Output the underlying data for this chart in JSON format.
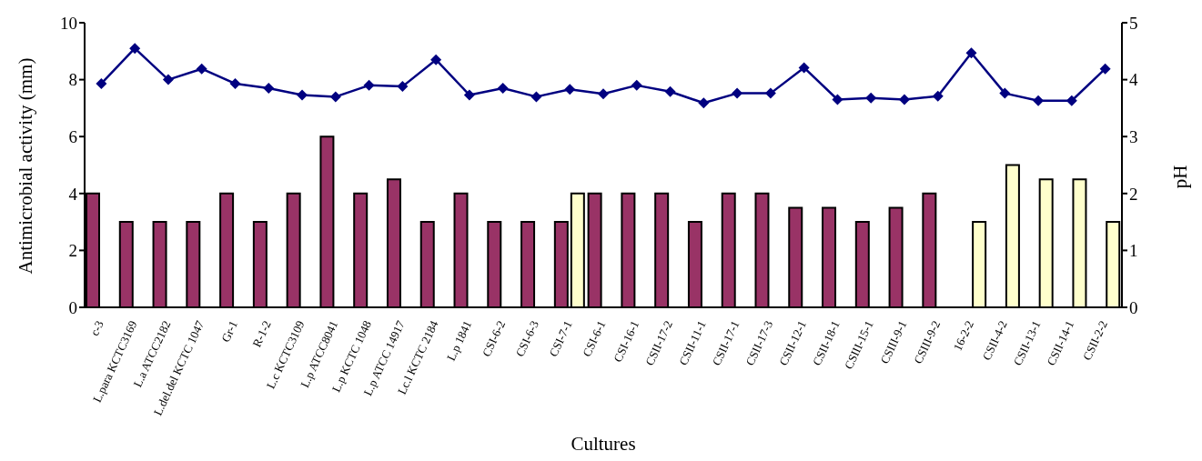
{
  "chart_data": {
    "type": "bar",
    "xlabel": "Cultures",
    "ylabel": "Antimicrobial activity (mm)",
    "y2label": "pH",
    "categories": [
      "c-3",
      "L.para KCTC3169",
      "L.a ATCC2182",
      "L.del.del KCTC 1047",
      "Gr-1",
      "R-1-2",
      "L.c KCTC3109",
      "L.p ATCC8041",
      "L.p KCTC 1048",
      "L.p ATCC 14917",
      "Lc.l KCTC 2184",
      "L.p 1841",
      "CSI-6-2",
      "CSI-6-3",
      "CSI-7-1",
      "CSI-6-1",
      "CSI-16-1",
      "CSII-17-2",
      "CSII-11-1",
      "CSII-17-1",
      "CSII-17-3",
      "CSII-12-1",
      "CSII-18-1",
      "CSIII-15-1",
      "CSIII-9-1",
      "CSIII-9-2",
      "16-2-2",
      "CSII-4-2",
      "CSII-13-1",
      "CSII-14-1",
      "CSII-2-2"
    ],
    "series": [
      {
        "color": "#993366",
        "values": [
          4,
          3,
          3,
          3,
          4,
          3,
          4,
          6,
          4,
          4.5,
          3,
          4,
          3,
          3,
          3,
          4,
          4,
          4,
          3,
          4,
          4,
          3.5,
          3.5,
          3,
          3.5,
          4,
          null,
          null,
          null,
          null,
          null
        ]
      },
      {
        "color": "#ffffcc",
        "values": [
          null,
          null,
          null,
          null,
          null,
          null,
          null,
          null,
          null,
          null,
          null,
          null,
          null,
          null,
          4,
          null,
          null,
          null,
          null,
          null,
          null,
          null,
          null,
          null,
          null,
          null,
          3,
          5,
          4.5,
          4.5,
          3
        ]
      },
      {
        "type": "line",
        "axis": "y2",
        "color": "#000080",
        "marker": "diamond",
        "values": [
          3.93,
          4.55,
          4.0,
          4.19,
          3.93,
          3.85,
          3.73,
          3.7,
          3.9,
          3.88,
          4.35,
          3.73,
          3.85,
          3.7,
          3.83,
          3.75,
          3.9,
          3.79,
          3.59,
          3.76,
          3.76,
          4.21,
          3.65,
          3.68,
          3.65,
          3.71,
          4.47,
          3.76,
          3.63,
          3.63,
          4.19
        ]
      }
    ],
    "ylim": [
      0,
      10
    ],
    "yticks": [
      0,
      2,
      4,
      6,
      8,
      10
    ],
    "y2lim": [
      0,
      5
    ],
    "y2ticks": [
      0,
      1,
      2,
      3,
      4,
      5
    ],
    "grid": false,
    "legend": false
  }
}
